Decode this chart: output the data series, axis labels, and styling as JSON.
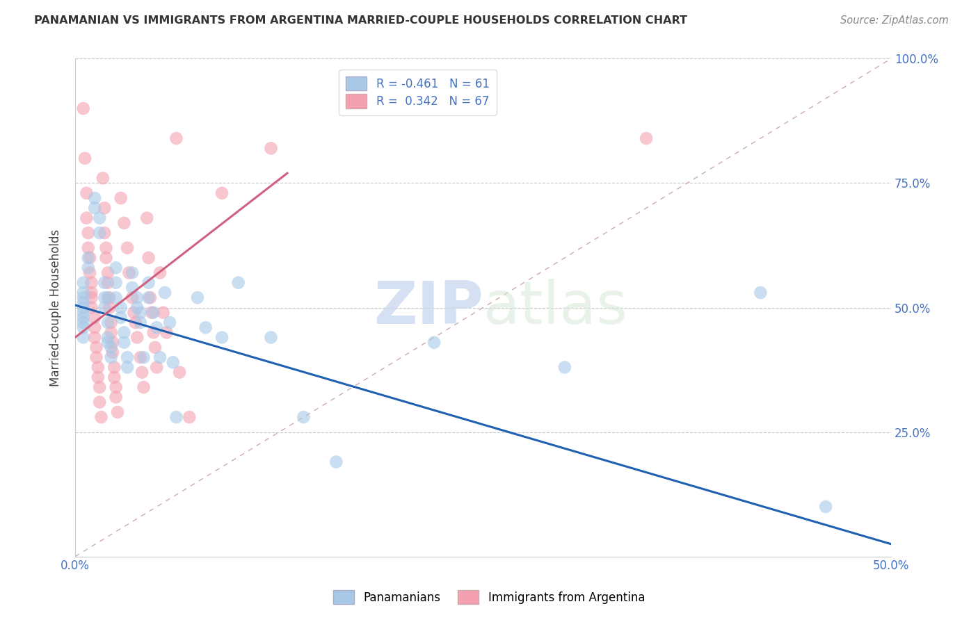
{
  "title": "PANAMANIAN VS IMMIGRANTS FROM ARGENTINA MARRIED-COUPLE HOUSEHOLDS CORRELATION CHART",
  "source": "Source: ZipAtlas.com",
  "ylabel": "Married-couple Households",
  "xlim": [
    0.0,
    0.5
  ],
  "ylim": [
    0.0,
    1.0
  ],
  "blue_R": -0.461,
  "blue_N": 61,
  "pink_R": 0.342,
  "pink_N": 67,
  "blue_color": "#a8c8e8",
  "pink_color": "#f4a0b0",
  "blue_line_color": "#2060b0",
  "pink_line_color": "#d06080",
  "blue_scatter": [
    [
      0.005,
      0.52
    ],
    [
      0.005,
      0.5
    ],
    [
      0.005,
      0.55
    ],
    [
      0.005,
      0.47
    ],
    [
      0.005,
      0.48
    ],
    [
      0.005,
      0.53
    ],
    [
      0.005,
      0.49
    ],
    [
      0.005,
      0.46
    ],
    [
      0.005,
      0.44
    ],
    [
      0.005,
      0.51
    ],
    [
      0.008,
      0.6
    ],
    [
      0.008,
      0.58
    ],
    [
      0.012,
      0.72
    ],
    [
      0.012,
      0.7
    ],
    [
      0.015,
      0.68
    ],
    [
      0.015,
      0.65
    ],
    [
      0.018,
      0.55
    ],
    [
      0.018,
      0.52
    ],
    [
      0.018,
      0.5
    ],
    [
      0.02,
      0.52
    ],
    [
      0.02,
      0.47
    ],
    [
      0.02,
      0.44
    ],
    [
      0.02,
      0.43
    ],
    [
      0.022,
      0.42
    ],
    [
      0.022,
      0.4
    ],
    [
      0.025,
      0.58
    ],
    [
      0.025,
      0.55
    ],
    [
      0.025,
      0.52
    ],
    [
      0.028,
      0.5
    ],
    [
      0.028,
      0.48
    ],
    [
      0.03,
      0.45
    ],
    [
      0.03,
      0.43
    ],
    [
      0.032,
      0.4
    ],
    [
      0.032,
      0.38
    ],
    [
      0.035,
      0.57
    ],
    [
      0.035,
      0.54
    ],
    [
      0.038,
      0.52
    ],
    [
      0.038,
      0.5
    ],
    [
      0.04,
      0.49
    ],
    [
      0.04,
      0.47
    ],
    [
      0.042,
      0.4
    ],
    [
      0.045,
      0.55
    ],
    [
      0.045,
      0.52
    ],
    [
      0.048,
      0.49
    ],
    [
      0.05,
      0.46
    ],
    [
      0.052,
      0.4
    ],
    [
      0.055,
      0.53
    ],
    [
      0.058,
      0.47
    ],
    [
      0.06,
      0.39
    ],
    [
      0.062,
      0.28
    ],
    [
      0.075,
      0.52
    ],
    [
      0.08,
      0.46
    ],
    [
      0.09,
      0.44
    ],
    [
      0.1,
      0.55
    ],
    [
      0.12,
      0.44
    ],
    [
      0.14,
      0.28
    ],
    [
      0.16,
      0.19
    ],
    [
      0.22,
      0.43
    ],
    [
      0.3,
      0.38
    ],
    [
      0.42,
      0.53
    ],
    [
      0.46,
      0.1
    ]
  ],
  "pink_scatter": [
    [
      0.005,
      0.9
    ],
    [
      0.006,
      0.8
    ],
    [
      0.007,
      0.73
    ],
    [
      0.007,
      0.68
    ],
    [
      0.008,
      0.65
    ],
    [
      0.008,
      0.62
    ],
    [
      0.009,
      0.6
    ],
    [
      0.009,
      0.57
    ],
    [
      0.01,
      0.55
    ],
    [
      0.01,
      0.53
    ],
    [
      0.01,
      0.52
    ],
    [
      0.01,
      0.5
    ],
    [
      0.012,
      0.48
    ],
    [
      0.012,
      0.46
    ],
    [
      0.012,
      0.44
    ],
    [
      0.013,
      0.42
    ],
    [
      0.013,
      0.4
    ],
    [
      0.014,
      0.38
    ],
    [
      0.014,
      0.36
    ],
    [
      0.015,
      0.34
    ],
    [
      0.015,
      0.31
    ],
    [
      0.016,
      0.28
    ],
    [
      0.017,
      0.76
    ],
    [
      0.018,
      0.7
    ],
    [
      0.018,
      0.65
    ],
    [
      0.019,
      0.62
    ],
    [
      0.019,
      0.6
    ],
    [
      0.02,
      0.57
    ],
    [
      0.02,
      0.55
    ],
    [
      0.021,
      0.52
    ],
    [
      0.021,
      0.5
    ],
    [
      0.022,
      0.47
    ],
    [
      0.022,
      0.45
    ],
    [
      0.023,
      0.43
    ],
    [
      0.023,
      0.41
    ],
    [
      0.024,
      0.38
    ],
    [
      0.024,
      0.36
    ],
    [
      0.025,
      0.34
    ],
    [
      0.025,
      0.32
    ],
    [
      0.026,
      0.29
    ],
    [
      0.028,
      0.72
    ],
    [
      0.03,
      0.67
    ],
    [
      0.032,
      0.62
    ],
    [
      0.033,
      0.57
    ],
    [
      0.035,
      0.52
    ],
    [
      0.036,
      0.49
    ],
    [
      0.037,
      0.47
    ],
    [
      0.038,
      0.44
    ],
    [
      0.04,
      0.4
    ],
    [
      0.041,
      0.37
    ],
    [
      0.042,
      0.34
    ],
    [
      0.044,
      0.68
    ],
    [
      0.045,
      0.6
    ],
    [
      0.046,
      0.52
    ],
    [
      0.047,
      0.49
    ],
    [
      0.048,
      0.45
    ],
    [
      0.049,
      0.42
    ],
    [
      0.05,
      0.38
    ],
    [
      0.052,
      0.57
    ],
    [
      0.054,
      0.49
    ],
    [
      0.056,
      0.45
    ],
    [
      0.062,
      0.84
    ],
    [
      0.064,
      0.37
    ],
    [
      0.07,
      0.28
    ],
    [
      0.09,
      0.73
    ],
    [
      0.12,
      0.82
    ],
    [
      0.35,
      0.84
    ]
  ],
  "blue_line": [
    [
      0.0,
      0.505
    ],
    [
      0.5,
      0.025
    ]
  ],
  "pink_line": [
    [
      0.0,
      0.44
    ],
    [
      0.13,
      0.77
    ]
  ],
  "diag_line": [
    [
      0.0,
      0.0
    ],
    [
      0.5,
      1.0
    ]
  ],
  "watermark_zip": "ZIP",
  "watermark_atlas": "atlas",
  "background_color": "#ffffff",
  "grid_color": "#c8c8c8"
}
